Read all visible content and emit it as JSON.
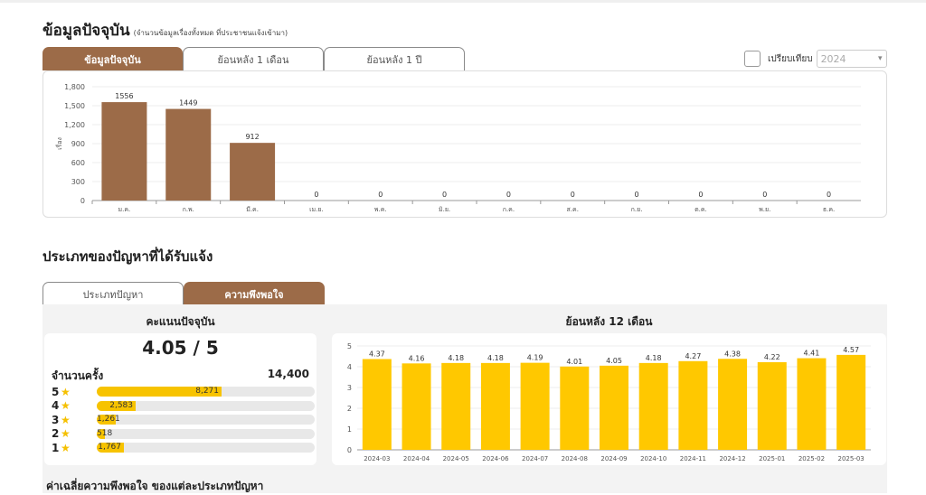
{
  "section1": {
    "title": "ข้อมูลปัจจุบัน",
    "subtitle": "(จำนวนข้อมูลเรื่องทั้งหมด ที่ประชาชนแจ้งเข้ามา)",
    "tabs": [
      {
        "label": "ข้อมูลปัจจุบัน",
        "active": true
      },
      {
        "label": "ย้อนหลัง 1 เดือน",
        "active": false
      },
      {
        "label": "ย้อนหลัง 1 ปี",
        "active": false
      }
    ],
    "compare_label": "เปรียบเทียบ",
    "compare_checked": false,
    "compare_year": "2024"
  },
  "section2": {
    "title": "ประเภทของปัญหาที่ได้รับแจ้ง",
    "tabs": [
      {
        "label": "ประเภทปัญหา",
        "active": false
      },
      {
        "label": "ความพึงพอใจ",
        "active": true
      }
    ],
    "current_score_heading": "คะแนนปัจจุบัน",
    "score": "4.05 / 5",
    "count_label": "จำนวนครั้ง",
    "count_value": "14,400",
    "star_glyph": "★",
    "stars": [
      {
        "star": "5",
        "count": 8271,
        "label": "8,271"
      },
      {
        "star": "4",
        "count": 2583,
        "label": "2,583"
      },
      {
        "star": "3",
        "count": 1261,
        "label": "1,261"
      },
      {
        "star": "2",
        "count": 518,
        "label": "518"
      },
      {
        "star": "1",
        "count": 1767,
        "label": "1,767"
      }
    ],
    "history_heading": "ย้อนหลัง 12 เดือน",
    "avg_title": "ค่าเฉลี่ยความพึงพอใจ ของแต่ละประเภทปัญหา"
  },
  "colors": {
    "brown": "#9c6b48",
    "gold": "#f7c300"
  },
  "chart_data": [
    {
      "type": "bar",
      "ylabel": "เรื่อง",
      "categories": [
        "ม.ค.",
        "ก.พ.",
        "มี.ค.",
        "เม.ย.",
        "พ.ค.",
        "มิ.ย.",
        "ก.ค.",
        "ส.ค.",
        "ก.ย.",
        "ต.ค.",
        "พ.ย.",
        "ธ.ค."
      ],
      "values": [
        1556,
        1449,
        912,
        0,
        0,
        0,
        0,
        0,
        0,
        0,
        0,
        0
      ],
      "yticks": [
        "0",
        "300",
        "600",
        "900",
        "1,200",
        "1,500",
        "1,800"
      ],
      "ylim": [
        0,
        1800
      ],
      "color": "#9c6b48"
    },
    {
      "type": "bar",
      "categories": [
        "2024-03",
        "2024-04",
        "2024-05",
        "2024-06",
        "2024-07",
        "2024-08",
        "2024-09",
        "2024-10",
        "2024-11",
        "2024-12",
        "2025-01",
        "2025-02",
        "2025-03"
      ],
      "values": [
        4.37,
        4.16,
        4.18,
        4.18,
        4.19,
        4.01,
        4.05,
        4.18,
        4.27,
        4.38,
        4.22,
        4.41,
        4.57
      ],
      "yticks": [
        "0",
        "1",
        "2",
        "3",
        "4",
        "5"
      ],
      "ylim": [
        0,
        5
      ],
      "color": "#ffc800"
    }
  ]
}
